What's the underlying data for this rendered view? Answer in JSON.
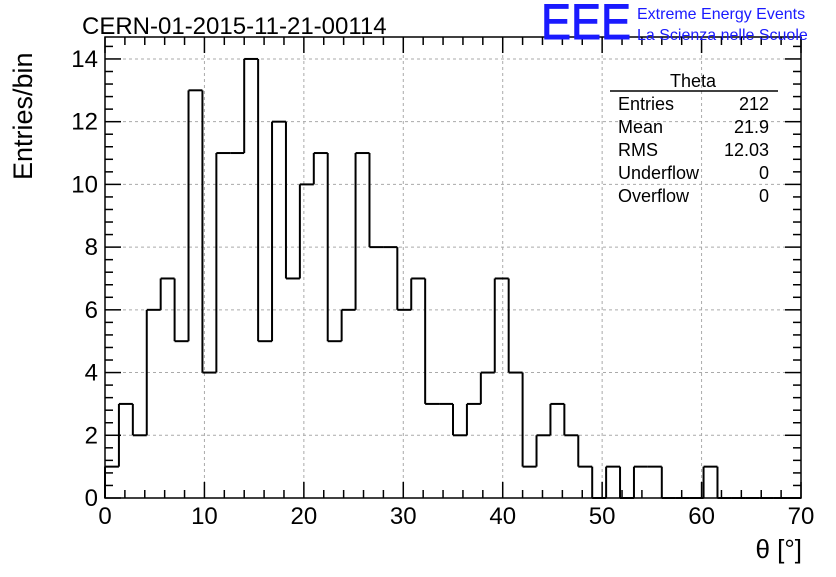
{
  "header": {
    "run_title": "CERN-01-2015-11-21-00114",
    "logo_text": "EEE",
    "org_line1": "Extreme Energy Events",
    "org_line2": "La Scienza nelle Scuole",
    "brand_color": "#1a1aff"
  },
  "stats_box": {
    "title": "Theta",
    "rows": [
      {
        "label": "Entries",
        "value": "212"
      },
      {
        "label": "Mean",
        "value": "21.9"
      },
      {
        "label": "RMS",
        "value": "12.03"
      },
      {
        "label": "Underflow",
        "value": "0"
      },
      {
        "label": "Overflow",
        "value": "0"
      }
    ]
  },
  "chart_data": {
    "type": "bar",
    "histogram": true,
    "title": "CERN-01-2015-11-21-00114",
    "xlabel": "θ [°]",
    "ylabel": "Entries/bin",
    "xlim": [
      0,
      70
    ],
    "ylim": [
      0,
      14.7
    ],
    "grid": true,
    "bin_width": 1.4,
    "x_ticks": [
      0,
      10,
      20,
      30,
      40,
      50,
      60,
      70
    ],
    "y_ticks": [
      0,
      2,
      4,
      6,
      8,
      10,
      12,
      14
    ],
    "bin_low_edges": [
      0,
      1.4,
      2.8,
      4.2,
      5.6,
      7,
      8.4,
      9.8,
      11.2,
      12.6,
      14,
      15.4,
      16.8,
      18.2,
      19.6,
      21,
      22.4,
      23.8,
      25.2,
      26.6,
      28,
      29.4,
      30.8,
      32.2,
      33.6,
      35,
      36.4,
      37.8,
      39.2,
      40.6,
      42,
      43.4,
      44.8,
      46.2,
      47.6,
      49,
      50.4,
      51.8,
      53.2,
      54.6,
      56,
      57.4,
      58.8,
      60.2,
      61.6,
      63,
      64.4,
      65.8,
      67.2,
      68.6
    ],
    "values": [
      1,
      3,
      2,
      6,
      7,
      5,
      13,
      4,
      11,
      11,
      14,
      5,
      12,
      7,
      10,
      11,
      5,
      6,
      11,
      8,
      8,
      6,
      7,
      3,
      3,
      2,
      3,
      4,
      7,
      4,
      1,
      2,
      3,
      2,
      1,
      0,
      1,
      0,
      1,
      1,
      0,
      0,
      0,
      1,
      0,
      0,
      0,
      0,
      0,
      0
    ]
  }
}
